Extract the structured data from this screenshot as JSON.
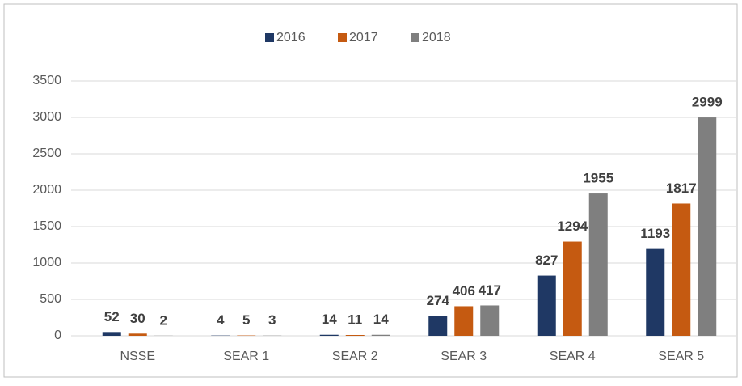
{
  "chart_data": {
    "type": "bar",
    "categories": [
      "NSSE",
      "SEAR 1",
      "SEAR 2",
      "SEAR 3",
      "SEAR 4",
      "SEAR 5"
    ],
    "series": [
      {
        "name": "2016",
        "color": "#1f3864",
        "values": [
          52,
          4,
          14,
          274,
          827,
          1193
        ]
      },
      {
        "name": "2017",
        "color": "#c55a11",
        "values": [
          30,
          5,
          11,
          406,
          1294,
          1817
        ]
      },
      {
        "name": "2018",
        "color": "#7f7f7f",
        "values": [
          2,
          3,
          14,
          417,
          1955,
          2999
        ]
      }
    ],
    "ylim": [
      0,
      3500
    ],
    "yticks": [
      0,
      500,
      1000,
      1500,
      2000,
      2500,
      3000,
      3500
    ],
    "grid": true,
    "legend": "top"
  }
}
